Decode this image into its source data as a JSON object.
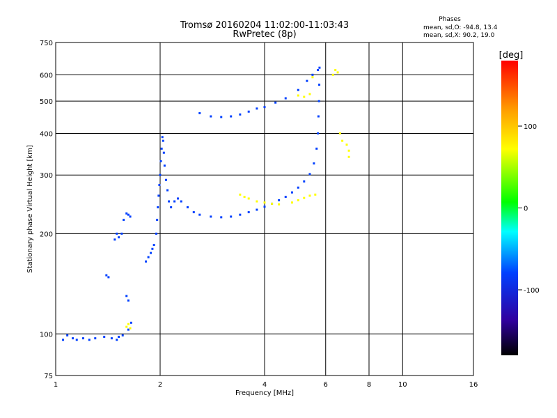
{
  "chart_data": {
    "type": "scatter",
    "title": "Tromsø 20160204 11:02:00-11:03:43",
    "subtitle": "RwPretec (8p)",
    "xlabel": "Frequency [MHz]",
    "ylabel": "Stationary phase Virtual Height [km]",
    "xscale": "log",
    "yscale": "log",
    "xlim": [
      1,
      16
    ],
    "ylim": [
      75,
      750
    ],
    "xticks": [
      1,
      2,
      4,
      6,
      8,
      10,
      16
    ],
    "yticks": [
      75,
      100,
      200,
      300,
      400,
      500,
      600,
      750
    ],
    "grid": true,
    "phases_box": {
      "title": "Phases",
      "line_o": "mean, sd,O: -94.8, 13.4",
      "line_x": "mean, sd,X:  90.2, 19.0"
    },
    "colorbar": {
      "label": "[deg]",
      "min": -180,
      "max": 180,
      "ticks": [
        100,
        0,
        -100
      ],
      "colors": [
        "#ff0000",
        "#ffa000",
        "#ffff00",
        "#00ff00",
        "#00ffff",
        "#0040ff",
        "#3000a0",
        "#000000"
      ]
    },
    "series": [
      {
        "color_phase": -100,
        "points": [
          [
            1.05,
            96
          ],
          [
            1.08,
            99
          ],
          [
            1.12,
            97
          ],
          [
            1.15,
            96
          ],
          [
            1.2,
            97
          ],
          [
            1.25,
            96
          ],
          [
            1.3,
            97
          ],
          [
            1.38,
            98
          ],
          [
            1.45,
            97
          ],
          [
            1.5,
            96
          ],
          [
            1.52,
            98
          ],
          [
            1.56,
            99
          ],
          [
            1.62,
            103
          ],
          [
            1.65,
            108
          ],
          [
            1.48,
            192
          ],
          [
            1.5,
            200
          ],
          [
            1.52,
            195
          ],
          [
            1.55,
            200
          ],
          [
            1.57,
            220
          ],
          [
            1.6,
            230
          ],
          [
            1.62,
            228
          ],
          [
            1.64,
            225
          ],
          [
            1.4,
            150
          ],
          [
            1.42,
            148
          ],
          [
            1.6,
            130
          ],
          [
            1.62,
            126
          ],
          [
            1.82,
            165
          ],
          [
            1.85,
            170
          ],
          [
            1.88,
            175
          ],
          [
            1.9,
            180
          ],
          [
            1.92,
            185
          ],
          [
            1.95,
            200
          ],
          [
            1.96,
            220
          ],
          [
            1.97,
            240
          ],
          [
            1.98,
            260
          ],
          [
            1.99,
            280
          ],
          [
            2.0,
            300
          ],
          [
            2.01,
            330
          ],
          [
            2.02,
            360
          ],
          [
            2.03,
            390
          ],
          [
            2.04,
            380
          ],
          [
            2.05,
            350
          ],
          [
            2.06,
            320
          ],
          [
            2.08,
            290
          ],
          [
            2.1,
            270
          ],
          [
            2.12,
            250
          ],
          [
            2.15,
            240
          ],
          [
            2.2,
            250
          ],
          [
            2.25,
            255
          ],
          [
            2.3,
            250
          ],
          [
            2.4,
            240
          ],
          [
            2.5,
            232
          ],
          [
            2.6,
            228
          ],
          [
            2.8,
            225
          ],
          [
            3.0,
            224
          ],
          [
            3.2,
            225
          ],
          [
            3.4,
            228
          ],
          [
            3.6,
            232
          ],
          [
            3.8,
            236
          ],
          [
            4.0,
            241
          ],
          [
            4.2,
            246
          ],
          [
            4.4,
            252
          ],
          [
            4.6,
            258
          ],
          [
            4.8,
            266
          ],
          [
            5.0,
            275
          ],
          [
            5.2,
            287
          ],
          [
            5.4,
            302
          ],
          [
            5.55,
            325
          ],
          [
            5.65,
            360
          ],
          [
            5.7,
            400
          ],
          [
            5.72,
            450
          ],
          [
            5.74,
            500
          ],
          [
            5.75,
            560
          ],
          [
            5.76,
            630
          ],
          [
            2.6,
            460
          ],
          [
            2.8,
            450
          ],
          [
            3.0,
            448
          ],
          [
            3.2,
            450
          ],
          [
            3.4,
            456
          ],
          [
            3.6,
            465
          ],
          [
            3.8,
            475
          ],
          [
            4.0,
            480
          ],
          [
            4.3,
            495
          ],
          [
            4.6,
            510
          ],
          [
            5.0,
            540
          ],
          [
            5.3,
            575
          ],
          [
            5.5,
            600
          ],
          [
            5.7,
            620
          ]
        ]
      },
      {
        "color_phase": 90,
        "points": [
          [
            1.6,
            105
          ],
          [
            1.62,
            107
          ],
          [
            1.64,
            104
          ],
          [
            3.4,
            262
          ],
          [
            3.5,
            258
          ],
          [
            3.6,
            255
          ],
          [
            3.8,
            250
          ],
          [
            4.0,
            248
          ],
          [
            4.2,
            246
          ],
          [
            4.4,
            245
          ],
          [
            4.8,
            248
          ],
          [
            5.0,
            252
          ],
          [
            5.2,
            256
          ],
          [
            5.4,
            260
          ],
          [
            5.6,
            262
          ],
          [
            5.0,
            520
          ],
          [
            5.2,
            515
          ],
          [
            5.4,
            525
          ],
          [
            5.5,
            590
          ],
          [
            6.3,
            600
          ],
          [
            6.4,
            620
          ],
          [
            6.5,
            610
          ],
          [
            6.6,
            400
          ],
          [
            6.7,
            380
          ],
          [
            6.9,
            370
          ],
          [
            7.0,
            355
          ],
          [
            7.0,
            340
          ]
        ]
      }
    ]
  }
}
